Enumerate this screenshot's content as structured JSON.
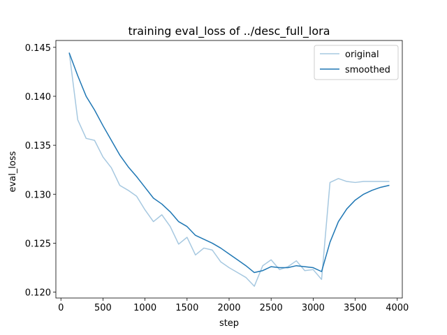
{
  "chart_data": {
    "type": "line",
    "title": "training eval_loss of ../desc_full_lora",
    "xlabel": "step",
    "ylabel": "eval_loss",
    "xlim": [
      -60,
      4060
    ],
    "ylim": [
      0.1194,
      0.1457
    ],
    "xticks": [
      0,
      500,
      1000,
      1500,
      2000,
      2500,
      3000,
      3500,
      4000
    ],
    "yticks": [
      0.12,
      0.125,
      0.13,
      0.135,
      0.14,
      0.145
    ],
    "ytick_labels": [
      "0.120",
      "0.125",
      "0.130",
      "0.135",
      "0.140",
      "0.145"
    ],
    "grid": false,
    "legend_position": "top-right",
    "x": [
      100,
      200,
      300,
      400,
      500,
      600,
      700,
      800,
      900,
      1000,
      1100,
      1200,
      1300,
      1400,
      1500,
      1600,
      1700,
      1800,
      1900,
      2000,
      2100,
      2200,
      2300,
      2400,
      2500,
      2600,
      2700,
      2800,
      2900,
      3000,
      3100,
      3200,
      3300,
      3400,
      3500,
      3600,
      3700,
      3800,
      3900
    ],
    "series": [
      {
        "name": "original",
        "color": "#a6c8e0",
        "values": [
          0.1444,
          0.1376,
          0.1357,
          0.1355,
          0.1338,
          0.1327,
          0.1309,
          0.1304,
          0.1298,
          0.1284,
          0.1272,
          0.1279,
          0.1267,
          0.1249,
          0.1256,
          0.1238,
          0.1245,
          0.1243,
          0.1231,
          0.1225,
          0.122,
          0.1215,
          0.1206,
          0.1227,
          0.1233,
          0.1223,
          0.1226,
          0.1232,
          0.1222,
          0.1223,
          0.1213,
          0.1312,
          0.1316,
          0.1313,
          0.1312,
          0.1313,
          0.1313,
          0.1313,
          0.1313
        ]
      },
      {
        "name": "smoothed",
        "color": "#1f77b4",
        "values": [
          0.1444,
          0.1421,
          0.14,
          0.1386,
          0.137,
          0.1355,
          0.134,
          0.1328,
          0.1318,
          0.1307,
          0.1296,
          0.129,
          0.1282,
          0.1272,
          0.1267,
          0.1258,
          0.1254,
          0.125,
          0.1245,
          0.1239,
          0.1233,
          0.1227,
          0.122,
          0.1222,
          0.1226,
          0.1225,
          0.1225,
          0.1227,
          0.1226,
          0.1225,
          0.1221,
          0.1251,
          0.1272,
          0.1285,
          0.1294,
          0.13,
          0.1304,
          0.1307,
          0.1309
        ]
      }
    ]
  }
}
